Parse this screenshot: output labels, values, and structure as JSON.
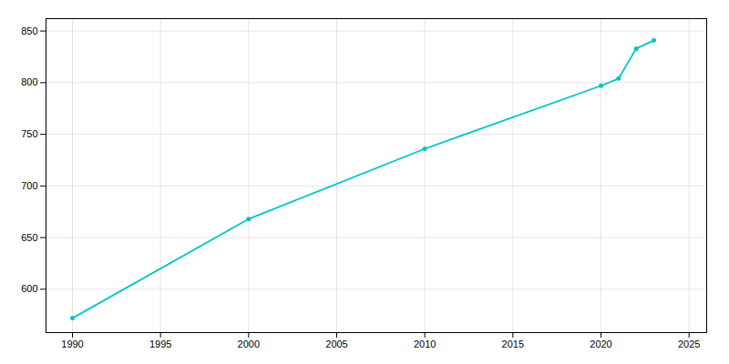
{
  "chart_data": {
    "type": "line",
    "x": [
      1990,
      2000,
      2010,
      2020,
      2021,
      2022,
      2023
    ],
    "values": [
      572,
      668,
      736,
      797,
      804,
      833,
      841
    ],
    "color": "#00C5C8",
    "marker": "circle",
    "xlim": [
      1988.5,
      2026
    ],
    "ylim": [
      558,
      862
    ],
    "xticks": [
      1990,
      1995,
      2000,
      2005,
      2010,
      2015,
      2020,
      2025
    ],
    "yticks": [
      600,
      650,
      700,
      750,
      800,
      850
    ],
    "grid": true
  }
}
